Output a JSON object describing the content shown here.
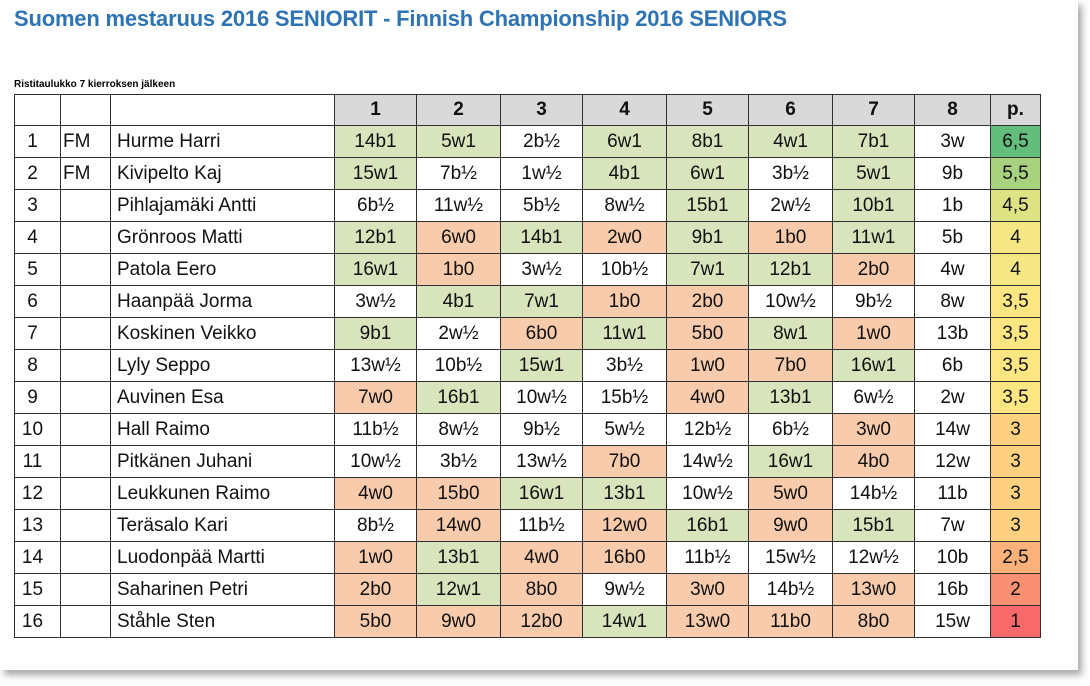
{
  "title": "Suomen mestaruus 2016 SENIORIT - Finnish Championship 2016 SENIORS",
  "subtitle": "Ristitaulukko 7 kierroksen jälkeen",
  "colors": {
    "win": "#d8e4bc",
    "loss": "#f8cbad",
    "draw": "#ffffff",
    "title": "#2e74b5",
    "header": "#d9d9d9"
  },
  "table": {
    "columns": [
      "",
      "",
      "",
      "1",
      "2",
      "3",
      "4",
      "5",
      "6",
      "7",
      "8",
      "p."
    ],
    "rows": [
      {
        "rank": "1",
        "title": "FM",
        "name": "Hurme Harri",
        "rounds": [
          "14b1",
          "5w1",
          "2b½",
          "6w1",
          "8b1",
          "4w1",
          "7b1",
          "3w"
        ],
        "points": "6,5",
        "points_color": "#63be7b"
      },
      {
        "rank": "2",
        "title": "FM",
        "name": "Kivipelto Kaj",
        "rounds": [
          "15w1",
          "7b½",
          "1w½",
          "4b1",
          "6w1",
          "3b½",
          "5w1",
          "9b"
        ],
        "points": "5,5",
        "points_color": "#a9d27f"
      },
      {
        "rank": "3",
        "title": "",
        "name": "Pihlajamäki Antti",
        "rounds": [
          "6b½",
          "11w½",
          "5b½",
          "8w½",
          "15b1",
          "2w½",
          "10b1",
          "1b"
        ],
        "points": "4,5",
        "points_color": "#dde383"
      },
      {
        "rank": "4",
        "title": "",
        "name": "Grönroos Matti",
        "rounds": [
          "12b1",
          "6w0",
          "14b1",
          "2w0",
          "9b1",
          "1b0",
          "11w1",
          "5b"
        ],
        "points": "4",
        "points_color": "#f5e884"
      },
      {
        "rank": "5",
        "title": "",
        "name": "Patola Eero",
        "rounds": [
          "16w1",
          "1b0",
          "3w½",
          "10b½",
          "7w1",
          "12b1",
          "2b0",
          "4w"
        ],
        "points": "4",
        "points_color": "#f5e884"
      },
      {
        "rank": "6",
        "title": "",
        "name": "Haanpää Jorma",
        "rounds": [
          "3w½",
          "4b1",
          "7w1",
          "1b0",
          "2b0",
          "10w½",
          "9b½",
          "8w"
        ],
        "points": "3,5",
        "points_color": "#fee783"
      },
      {
        "rank": "7",
        "title": "",
        "name": "Koskinen Veikko",
        "rounds": [
          "9b1",
          "2w½",
          "6b0",
          "11w1",
          "5b0",
          "8w1",
          "1w0",
          "13b"
        ],
        "points": "3,5",
        "points_color": "#fee783"
      },
      {
        "rank": "8",
        "title": "",
        "name": "Lyly Seppo",
        "rounds": [
          "13w½",
          "10b½",
          "15w1",
          "3b½",
          "1w0",
          "7b0",
          "16w1",
          "6b"
        ],
        "points": "3,5",
        "points_color": "#fee783"
      },
      {
        "rank": "9",
        "title": "",
        "name": "Auvinen Esa",
        "rounds": [
          "7w0",
          "16b1",
          "10w½",
          "15b½",
          "4w0",
          "13b1",
          "6w½",
          "2w"
        ],
        "points": "3,5",
        "points_color": "#fee783"
      },
      {
        "rank": "10",
        "title": "",
        "name": "Hall Raimo",
        "rounds": [
          "11b½",
          "8w½",
          "9b½",
          "5w½",
          "12b½",
          "6b½",
          "3w0",
          "14w"
        ],
        "points": "3",
        "points_color": "#fdd17f"
      },
      {
        "rank": "11",
        "title": "",
        "name": "Pitkänen Juhani",
        "rounds": [
          "10w½",
          "3b½",
          "13w½",
          "7b0",
          "14w½",
          "16w1",
          "4b0",
          "12w"
        ],
        "points": "3",
        "points_color": "#fdd17f"
      },
      {
        "rank": "12",
        "title": "",
        "name": "Leukkunen Raimo",
        "rounds": [
          "4w0",
          "15b0",
          "16w1",
          "13b1",
          "10w½",
          "5w0",
          "14b½",
          "11b"
        ],
        "points": "3",
        "points_color": "#fdd17f"
      },
      {
        "rank": "13",
        "title": "",
        "name": "Teräsalo Kari",
        "rounds": [
          "8b½",
          "14w0",
          "11b½",
          "12w0",
          "16b1",
          "9w0",
          "15b1",
          "7w"
        ],
        "points": "3",
        "points_color": "#fdd17f"
      },
      {
        "rank": "14",
        "title": "",
        "name": "Luodonpää Martti",
        "rounds": [
          "1w0",
          "13b1",
          "4w0",
          "16b0",
          "11b½",
          "15w½",
          "12w½",
          "10b"
        ],
        "points": "2,5",
        "points_color": "#fbb17a"
      },
      {
        "rank": "15",
        "title": "",
        "name": "Saharinen Petri",
        "rounds": [
          "2b0",
          "12w1",
          "8b0",
          "9w½",
          "3w0",
          "14b½",
          "13w0",
          "16b"
        ],
        "points": "2",
        "points_color": "#f99074"
      },
      {
        "rank": "16",
        "title": "",
        "name": "Ståhle Sten",
        "rounds": [
          "5b0",
          "9w0",
          "12b0",
          "14w1",
          "13w0",
          "11b0",
          "8b0",
          "15w"
        ],
        "points": "1",
        "points_color": "#f8696b"
      }
    ]
  }
}
